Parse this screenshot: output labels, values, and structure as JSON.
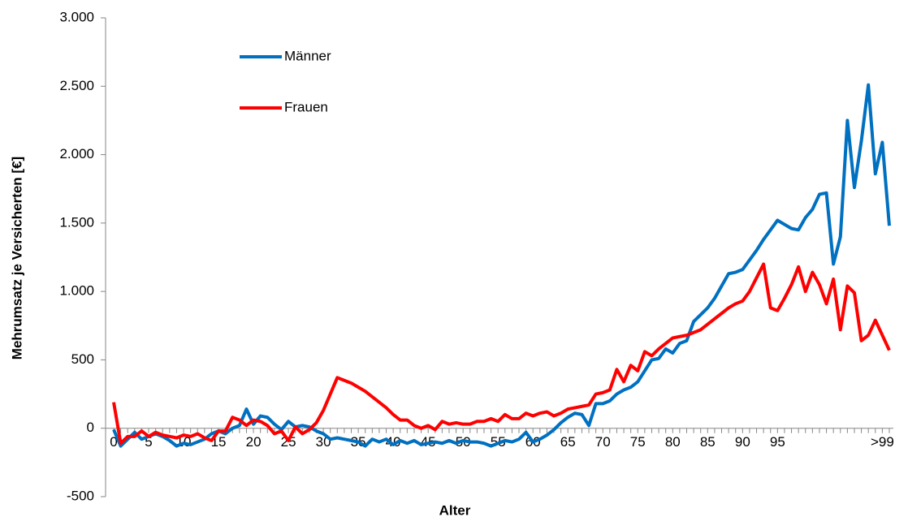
{
  "chart_data": {
    "type": "line",
    "x_label": "Alter",
    "y_label": "Mehrumsatz je Versicherten [€]",
    "categories": [
      "0",
      null,
      null,
      null,
      null,
      "5",
      null,
      null,
      null,
      null,
      "10",
      null,
      null,
      null,
      null,
      "15",
      null,
      null,
      null,
      null,
      "20",
      null,
      null,
      null,
      null,
      "25",
      null,
      null,
      null,
      null,
      "30",
      null,
      null,
      null,
      null,
      "35",
      null,
      null,
      null,
      null,
      "40",
      null,
      null,
      null,
      null,
      "45",
      null,
      null,
      null,
      null,
      "50",
      null,
      null,
      null,
      null,
      "55",
      null,
      null,
      null,
      null,
      "60",
      null,
      null,
      null,
      null,
      "65",
      null,
      null,
      null,
      null,
      "70",
      null,
      null,
      null,
      null,
      "75",
      null,
      null,
      null,
      null,
      "80",
      null,
      null,
      null,
      null,
      "85",
      null,
      null,
      null,
      null,
      "90",
      null,
      null,
      null,
      null,
      "95",
      null,
      null,
      null,
      null,
      null,
      null,
      null,
      null,
      null,
      null,
      null,
      null,
      null,
      null,
      ">99",
      null
    ],
    "series": [
      {
        "name": "Männer",
        "color": "#0070c0",
        "values": [
          -10,
          -130,
          -80,
          -30,
          -80,
          -60,
          -40,
          -60,
          -90,
          -130,
          -110,
          -120,
          -100,
          -80,
          -40,
          -20,
          -40,
          0,
          20,
          140,
          30,
          90,
          80,
          30,
          -10,
          50,
          10,
          20,
          10,
          -20,
          -40,
          -80,
          -70,
          -80,
          -90,
          -100,
          -130,
          -80,
          -100,
          -80,
          -120,
          -90,
          -110,
          -90,
          -120,
          -110,
          -100,
          -110,
          -90,
          -110,
          -90,
          -100,
          -100,
          -110,
          -130,
          -110,
          -90,
          -100,
          -80,
          -30,
          -100,
          -80,
          -50,
          -10,
          40,
          80,
          110,
          100,
          20,
          180,
          180,
          200,
          250,
          280,
          300,
          340,
          420,
          500,
          510,
          580,
          550,
          620,
          640,
          780,
          830,
          880,
          950,
          1040,
          1130,
          1140,
          1160,
          1230,
          1300,
          1380,
          1450,
          1520,
          1490,
          1460,
          1450,
          1540,
          1600,
          1710,
          1720,
          1200,
          1400,
          2250,
          1760,
          2100,
          2510,
          1860,
          2090,
          1480
        ]
      },
      {
        "name": "Frauen",
        "color": "#ff0000",
        "values": [
          190,
          -110,
          -60,
          -60,
          -20,
          -60,
          -30,
          -50,
          -60,
          -70,
          -50,
          -60,
          -40,
          -70,
          -90,
          -20,
          -20,
          80,
          60,
          20,
          60,
          50,
          20,
          -40,
          -20,
          -90,
          10,
          -40,
          -10,
          40,
          130,
          250,
          370,
          350,
          330,
          300,
          270,
          230,
          190,
          150,
          100,
          60,
          60,
          20,
          0,
          20,
          -10,
          50,
          30,
          40,
          30,
          30,
          50,
          50,
          70,
          50,
          100,
          70,
          70,
          110,
          90,
          110,
          120,
          90,
          110,
          140,
          150,
          160,
          170,
          250,
          260,
          280,
          430,
          340,
          460,
          420,
          560,
          530,
          580,
          620,
          660,
          670,
          680,
          700,
          720,
          760,
          800,
          840,
          880,
          910,
          930,
          1000,
          1100,
          1200,
          880,
          860,
          950,
          1050,
          1180,
          1000,
          1140,
          1050,
          910,
          1090,
          720,
          1040,
          990,
          640,
          680,
          790,
          680,
          570
        ]
      }
    ],
    "ylim": [
      -500,
      3000
    ],
    "yticks": [
      {
        "value": -500,
        "label": "-500"
      },
      0,
      500,
      {
        "value": 1000,
        "label": "1.000"
      },
      {
        "value": 1500,
        "label": "1.500"
      },
      {
        "value": 2000,
        "label": "2.000"
      },
      {
        "value": 2500,
        "label": "2.500"
      },
      {
        "value": 3000,
        "label": "3.000"
      }
    ],
    "grid": false,
    "legend": "upper left"
  }
}
